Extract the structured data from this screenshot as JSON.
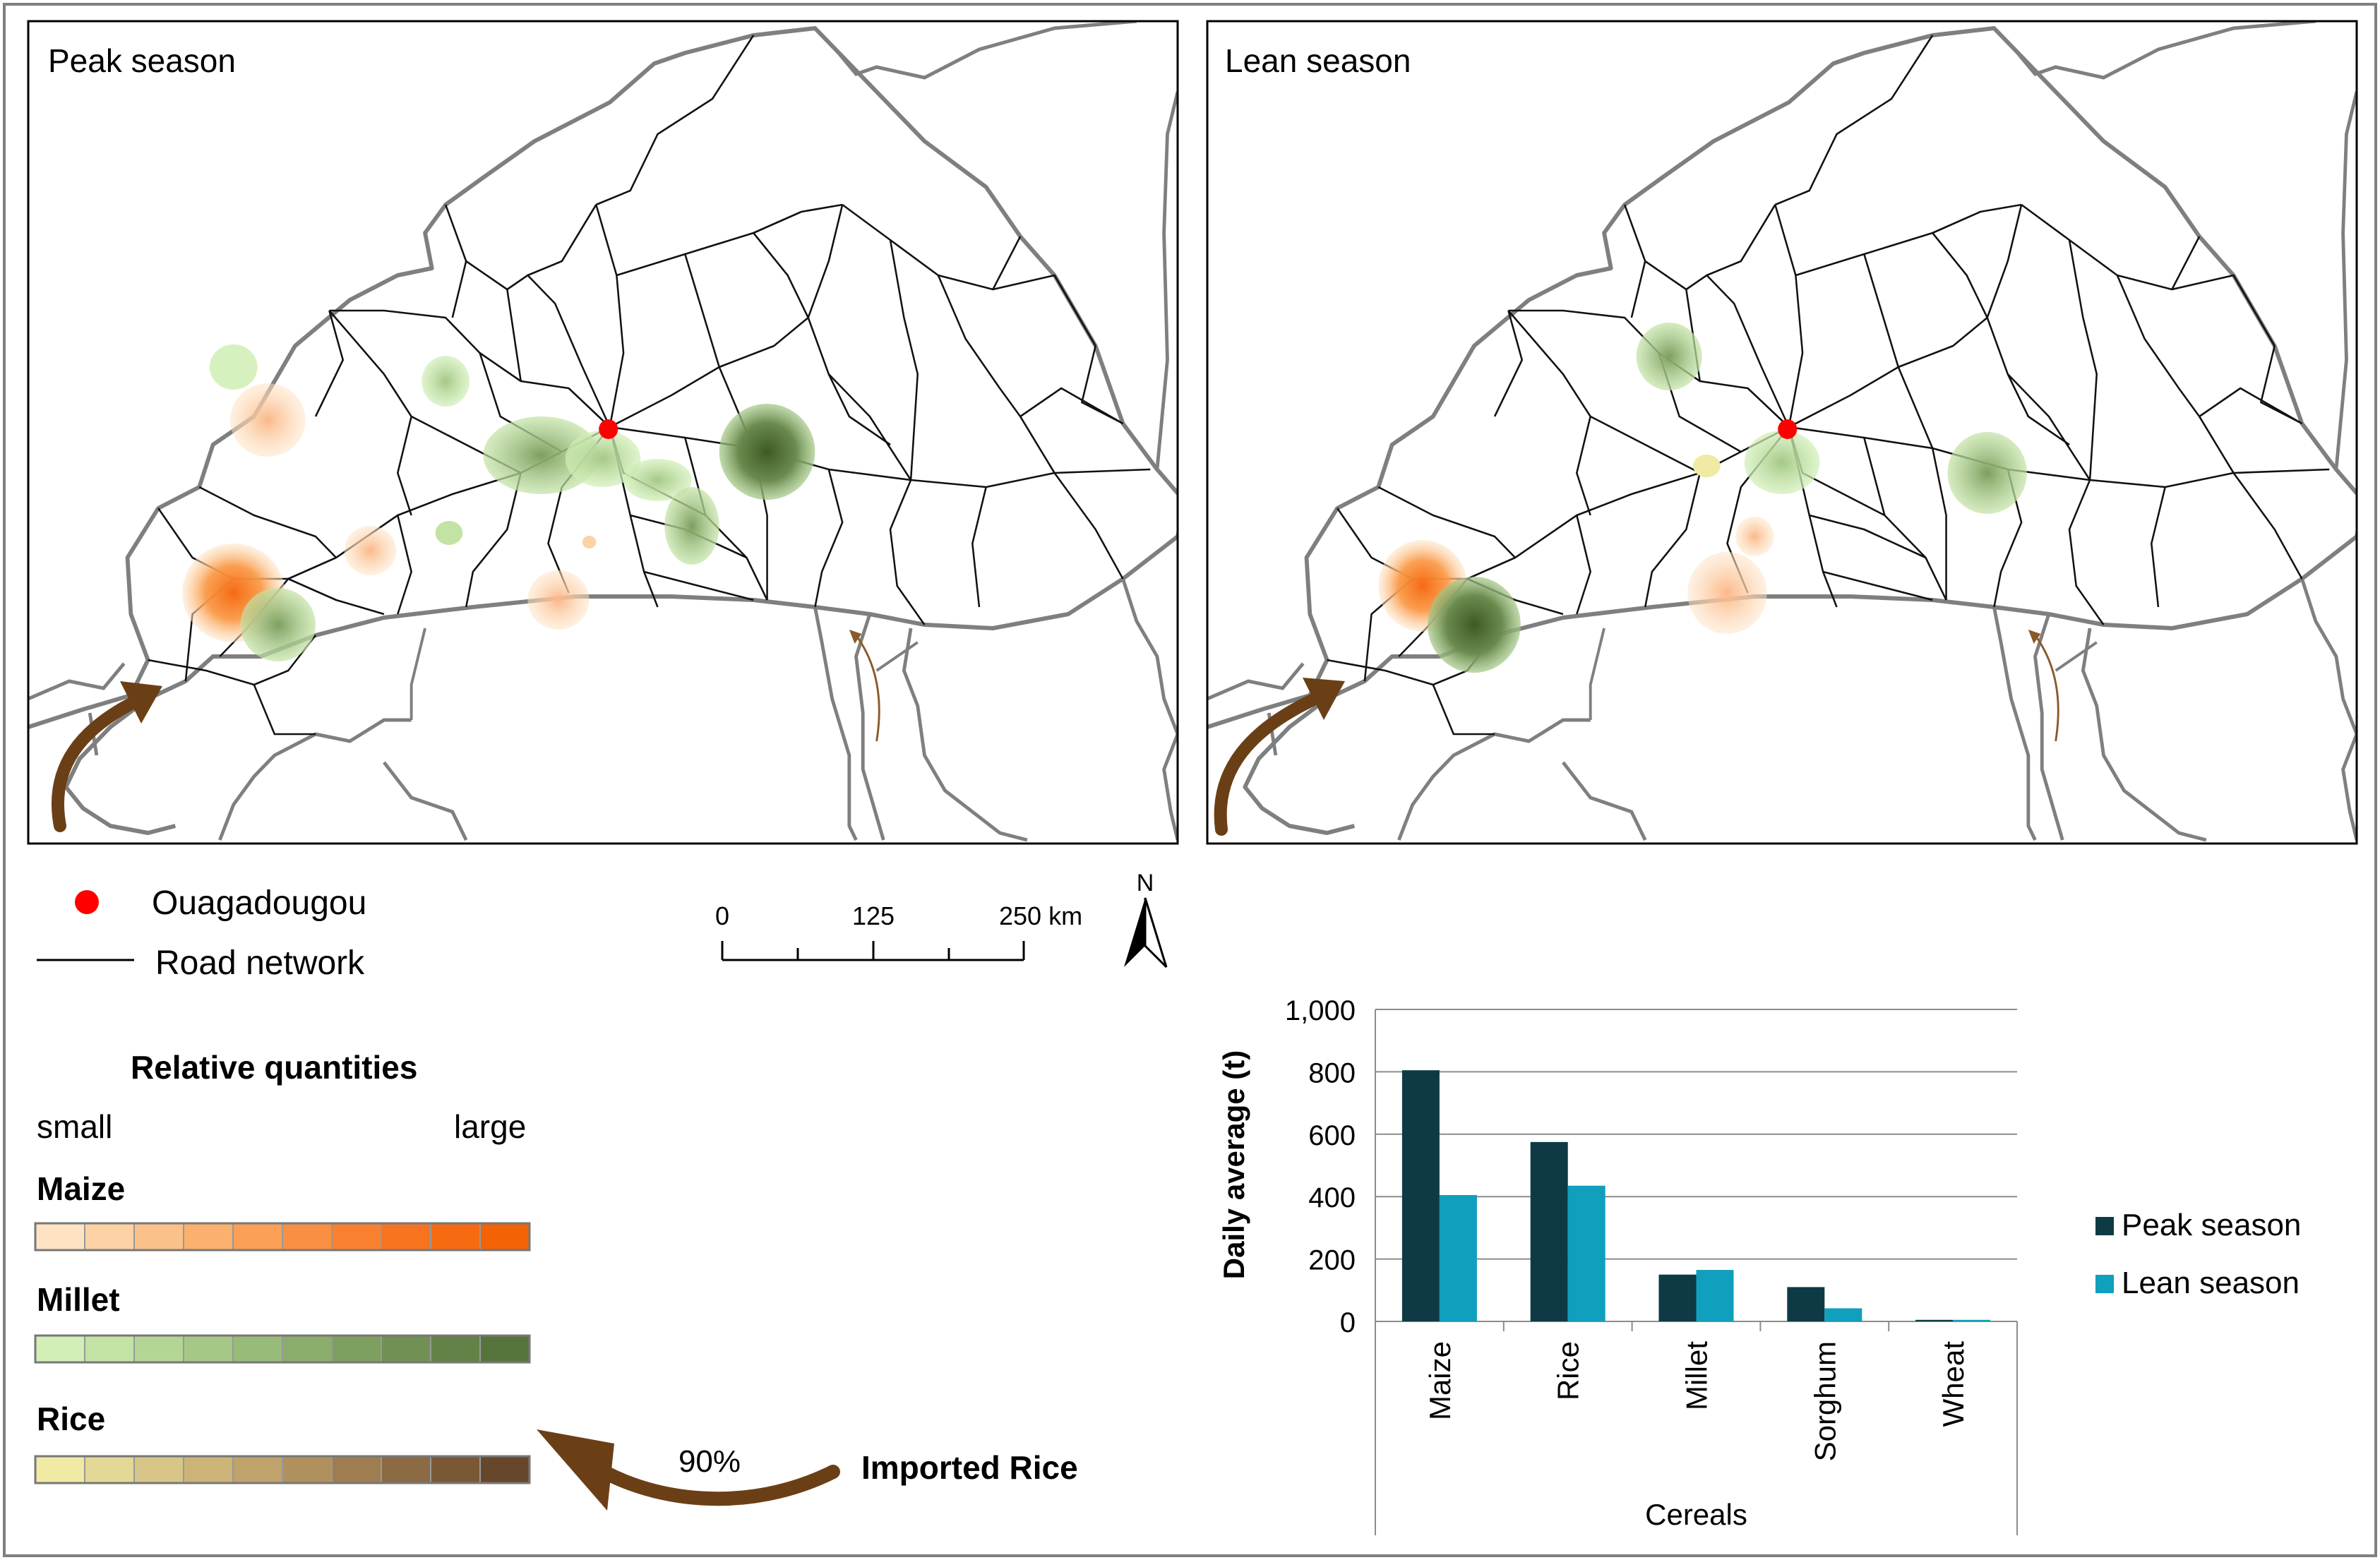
{
  "maps": {
    "peak": {
      "title": "Peak season"
    },
    "lean": {
      "title": "Lean season"
    }
  },
  "legend": {
    "capital_label": "Ouagadougou",
    "road_label": "Road network",
    "quantities_title": "Relative quantities",
    "small_label": "small",
    "large_label": "large",
    "maize_label": "Maize",
    "millet_label": "Millet",
    "rice_label": "Rice",
    "maize_colors": [
      "#fde3c4",
      "#fcd2a6",
      "#fbc18a",
      "#fbb06e",
      "#faa057",
      "#f98f42",
      "#f8802f",
      "#f7731f",
      "#f66a12",
      "#f46206"
    ],
    "millet_colors": [
      "#d1efb7",
      "#c3e3a5",
      "#b4d695",
      "#a5c887",
      "#97bb79",
      "#8aad6c",
      "#7d9f60",
      "#709153",
      "#628247",
      "#55743b"
    ],
    "rice_colors": [
      "#f0eaa4",
      "#e4d896",
      "#d8c688",
      "#ccb479",
      "#c0a26b",
      "#b0905d",
      "#9f7d50",
      "#8c6a43",
      "#7a5836",
      "#67472b"
    ]
  },
  "scale_bar": {
    "label_0": "0",
    "label_mid": "125",
    "label_max": "250 km",
    "north": "N"
  },
  "import": {
    "percent": "90%",
    "label": "Imported Rice"
  },
  "colors": {
    "capital": "#ff0000",
    "arrow": "#6b3f16",
    "peak_bar": "#0e3a45",
    "lean_bar": "#109fbd",
    "border": "#7f7f7f"
  },
  "chart_data": {
    "type": "bar",
    "categories": [
      "Maize",
      "Rice",
      "Millet",
      "Sorghum",
      "Wheat"
    ],
    "series": [
      {
        "name": "Peak season",
        "values": [
          805,
          575,
          150,
          110,
          5
        ]
      },
      {
        "name": "Lean season",
        "values": [
          405,
          435,
          165,
          42,
          5
        ]
      }
    ],
    "ylabel": "Daily average (t)",
    "xlabel": "Cereals",
    "ylim": [
      0,
      1000
    ],
    "yticks": [
      "1,000",
      "800",
      "600",
      "400",
      "200",
      "0"
    ],
    "yticks_values": [
      1000,
      800,
      600,
      400,
      200,
      0
    ],
    "legend_position": "right"
  }
}
